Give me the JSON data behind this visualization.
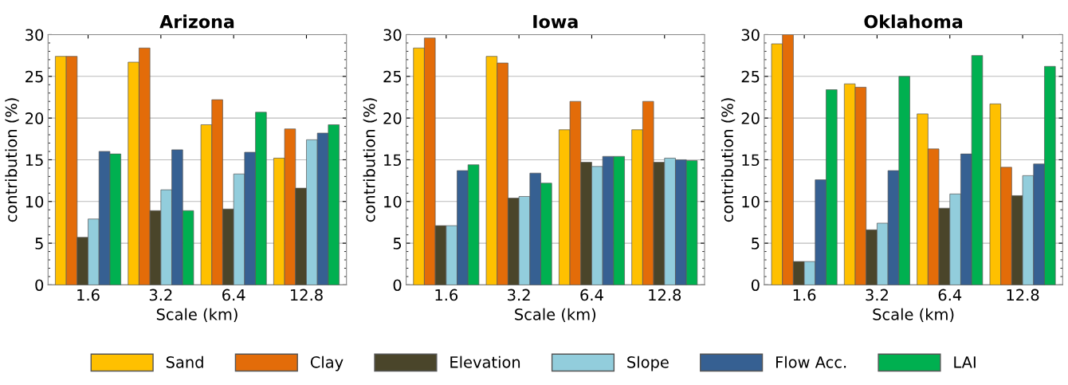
{
  "chart_data": [
    {
      "type": "bar",
      "title": "Arizona",
      "xlabel": "Scale (km)",
      "ylabel": "contribution (%)",
      "categories": [
        "1.6",
        "3.2",
        "6.4",
        "12.8"
      ],
      "ylim": [
        0,
        30
      ],
      "yticks": [
        0,
        5,
        10,
        15,
        20,
        25,
        30
      ],
      "grid": "y",
      "legend": "bottom",
      "series": [
        {
          "name": "Sand",
          "color": "#ffc000",
          "values": [
            27.4,
            26.7,
            19.2,
            15.2
          ]
        },
        {
          "name": "Clay",
          "color": "#e36c09",
          "values": [
            27.4,
            28.4,
            22.2,
            18.7
          ]
        },
        {
          "name": "Elevation",
          "color": "#4a452a",
          "values": [
            5.7,
            8.9,
            9.1,
            11.6
          ]
        },
        {
          "name": "Slope",
          "color": "#92cddc",
          "values": [
            7.9,
            11.4,
            13.3,
            17.4
          ]
        },
        {
          "name": "Flow Acc.",
          "color": "#366092",
          "values": [
            16.0,
            16.2,
            15.9,
            18.2
          ]
        },
        {
          "name": "LAI",
          "color": "#00b050",
          "values": [
            15.7,
            8.9,
            20.7,
            19.2
          ]
        }
      ]
    },
    {
      "type": "bar",
      "title": "Iowa",
      "xlabel": "Scale (km)",
      "ylabel": "contribution (%)",
      "categories": [
        "1.6",
        "3.2",
        "6.4",
        "12.8"
      ],
      "ylim": [
        0,
        30
      ],
      "yticks": [
        0,
        5,
        10,
        15,
        20,
        25,
        30
      ],
      "grid": "y",
      "series": [
        {
          "color": "#ffc000",
          "values": [
            28.4,
            27.4,
            18.6,
            18.6
          ]
        },
        {
          "color": "#e36c09",
          "values": [
            29.6,
            26.6,
            22.0,
            22.0
          ]
        },
        {
          "color": "#4a452a",
          "values": [
            7.1,
            10.4,
            14.7,
            14.7
          ]
        },
        {
          "color": "#92cddc",
          "values": [
            7.1,
            10.6,
            14.2,
            15.2
          ]
        },
        {
          "color": "#366092",
          "values": [
            13.7,
            13.4,
            15.4,
            15.0
          ]
        },
        {
          "color": "#00b050",
          "values": [
            14.4,
            12.2,
            15.4,
            14.9
          ]
        }
      ]
    },
    {
      "type": "bar",
      "title": "Oklahoma",
      "xlabel": "Scale (km)",
      "ylabel": "contribution (%)",
      "categories": [
        "1.6",
        "3.2",
        "6.4",
        "12.8"
      ],
      "ylim": [
        0,
        30
      ],
      "yticks": [
        0,
        5,
        10,
        15,
        20,
        25,
        30
      ],
      "grid": "y",
      "series": [
        {
          "color": "#ffc000",
          "values": [
            28.9,
            24.1,
            20.5,
            21.7
          ]
        },
        {
          "color": "#e36c09",
          "values": [
            30.0,
            23.7,
            16.3,
            14.1
          ]
        },
        {
          "color": "#4a452a",
          "values": [
            2.8,
            6.6,
            9.2,
            10.7
          ]
        },
        {
          "color": "#92cddc",
          "values": [
            2.8,
            7.4,
            10.9,
            13.1
          ]
        },
        {
          "color": "#366092",
          "values": [
            12.6,
            13.7,
            15.7,
            14.5
          ]
        },
        {
          "color": "#00b050",
          "values": [
            23.4,
            25.0,
            27.5,
            26.2
          ]
        }
      ]
    }
  ]
}
